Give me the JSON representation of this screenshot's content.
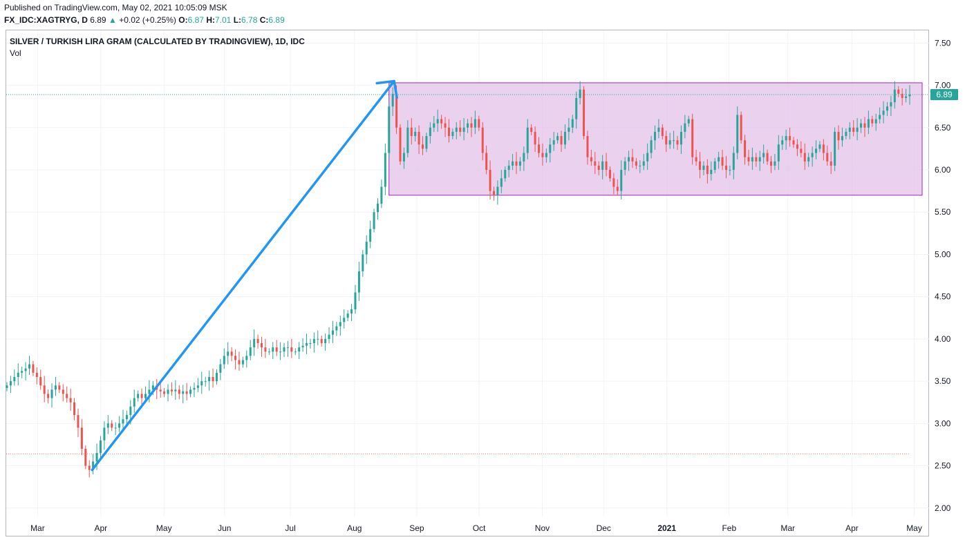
{
  "header": {
    "published": "Published on TradingView.com, May 02, 2021 10:05:09 MSK",
    "symbol": "FX_IDC:XAGTRYG, D",
    "last": "6.89",
    "change_arrow": "▲",
    "change": "+0.02 (+0.25%)",
    "o_label": "O:",
    "o_value": "6.87",
    "h_label": "H:",
    "h_value": "7.01",
    "l_label": "L:",
    "l_value": "6.78",
    "c_label": "C:",
    "c_value": "6.89"
  },
  "legend": {
    "title": "SILVER / TURKISH LIRA GRAM (CALCULATED BY TRADINGVIEW), 1D, IDC",
    "vol": "Vol"
  },
  "colors": {
    "up": "#26a69a",
    "down": "#ef5350",
    "arrow": "#2196f3",
    "box_fill": "#e1bee7",
    "box_border": "#9c27b0",
    "price_line": "#26a69a",
    "grid": "#f0f3fa"
  },
  "chart_data": {
    "type": "candlestick",
    "title": "SILVER / TURKISH LIRA GRAM (CALCULATED BY TRADINGVIEW), 1D, IDC",
    "ylim": [
      1.9,
      7.65
    ],
    "y_ticks": [
      "7.50",
      "7.00",
      "6.50",
      "6.00",
      "5.50",
      "5.00",
      "4.50",
      "4.00",
      "3.50",
      "3.00",
      "2.50",
      "2.00"
    ],
    "x_ticks": [
      "Mar",
      "Apr",
      "May",
      "Jun",
      "Jul",
      "Aug",
      "Sep",
      "Oct",
      "Nov",
      "Dec",
      "2021",
      "Feb",
      "Mar",
      "Apr",
      "May"
    ],
    "last_price_label": "6.89",
    "last_price": 6.89,
    "reference_price": 2.64,
    "series_close": [
      3.45,
      3.5,
      3.55,
      3.6,
      3.62,
      3.65,
      3.7,
      3.6,
      3.55,
      3.45,
      3.35,
      3.3,
      3.4,
      3.45,
      3.4,
      3.35,
      3.3,
      3.25,
      3.1,
      2.95,
      2.7,
      2.5,
      2.45,
      2.55,
      2.65,
      2.8,
      2.95,
      3.0,
      2.95,
      2.95,
      3.0,
      3.05,
      3.1,
      3.2,
      3.3,
      3.35,
      3.3,
      3.35,
      3.4,
      3.45,
      3.4,
      3.38,
      3.35,
      3.4,
      3.38,
      3.4,
      3.35,
      3.38,
      3.35,
      3.4,
      3.42,
      3.45,
      3.5,
      3.5,
      3.55,
      3.5,
      3.6,
      3.7,
      3.8,
      3.85,
      3.8,
      3.75,
      3.7,
      3.75,
      3.8,
      3.9,
      4.0,
      3.95,
      3.9,
      3.85,
      3.85,
      3.9,
      3.85,
      3.85,
      3.9,
      3.9,
      3.85,
      3.85,
      3.9,
      3.92,
      3.95,
      3.95,
      4.0,
      4.0,
      3.95,
      4.0,
      4.05,
      4.1,
      4.15,
      4.2,
      4.25,
      4.3,
      4.35,
      4.55,
      4.8,
      5.0,
      5.15,
      5.3,
      5.5,
      5.6,
      5.8,
      6.2,
      6.75,
      6.9,
      6.5,
      6.1,
      6.2,
      6.5,
      6.4,
      6.45,
      6.3,
      6.25,
      6.4,
      6.5,
      6.55,
      6.6,
      6.55,
      6.5,
      6.4,
      6.45,
      6.5,
      6.45,
      6.5,
      6.55,
      6.5,
      6.6,
      6.5,
      6.2,
      6.0,
      5.75,
      5.7,
      5.8,
      5.9,
      6.0,
      6.05,
      6.1,
      6.05,
      6.1,
      6.2,
      6.5,
      6.45,
      6.3,
      6.2,
      6.15,
      6.2,
      6.3,
      6.35,
      6.4,
      6.3,
      6.45,
      6.5,
      6.6,
      6.85,
      6.95,
      6.4,
      6.15,
      6.1,
      6.05,
      6.0,
      6.1,
      6.0,
      5.9,
      5.8,
      5.75,
      6.0,
      6.1,
      6.15,
      6.1,
      6.05,
      6.05,
      6.1,
      6.2,
      6.35,
      6.45,
      6.5,
      6.4,
      6.3,
      6.35,
      6.35,
      6.3,
      6.45,
      6.55,
      6.6,
      6.15,
      6.1,
      6.0,
      6.05,
      5.95,
      6.0,
      6.1,
      6.15,
      6.05,
      6.0,
      6.0,
      6.2,
      6.65,
      6.35,
      6.15,
      6.1,
      6.15,
      6.1,
      6.15,
      6.2,
      6.1,
      6.05,
      6.1,
      6.3,
      6.35,
      6.4,
      6.35,
      6.3,
      6.25,
      6.2,
      6.1,
      6.15,
      6.2,
      6.25,
      6.3,
      6.2,
      6.1,
      6.05,
      6.45,
      6.35,
      6.4,
      6.45,
      6.5,
      6.45,
      6.5,
      6.55,
      6.5,
      6.6,
      6.55,
      6.6,
      6.65,
      6.7,
      6.75,
      6.8,
      6.95,
      6.9,
      6.85,
      6.87,
      6.89
    ],
    "range_box": {
      "y_top": 7.03,
      "y_bottom": 5.7
    },
    "arrow": {
      "from_y": 2.45,
      "to_y": 7.05
    }
  }
}
